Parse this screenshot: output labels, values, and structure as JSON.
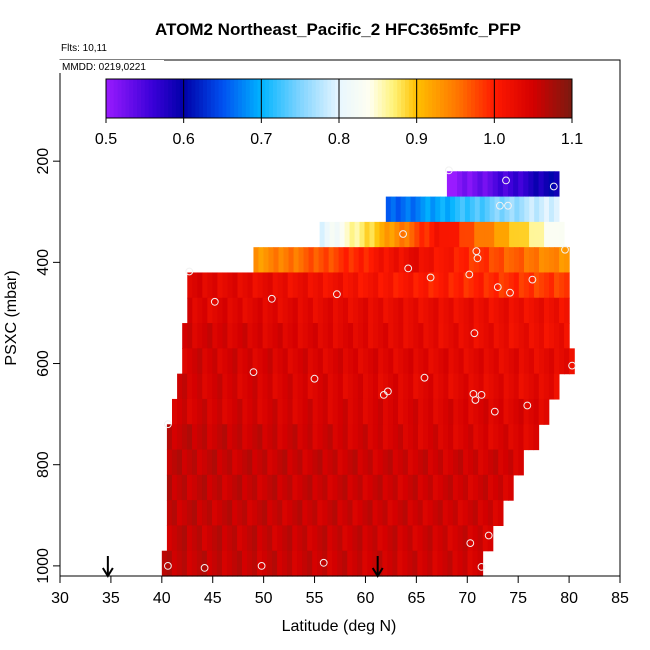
{
  "chart_data": {
    "type": "heatmap",
    "title": "ATOM2 Northeast_Pacific_2 HFC365mfc_PFP",
    "flights_label": "Flts: 10,11",
    "dates_label": "MMDD: 0219,0221",
    "xlabel": "Latitude (deg N)",
    "ylabel": "PSXC (mbar)",
    "xlim": [
      30,
      85
    ],
    "ylim": [
      1020,
      0
    ],
    "x_ticks": [
      30,
      35,
      40,
      45,
      50,
      55,
      60,
      65,
      70,
      75,
      80,
      85
    ],
    "y_ticks": [
      200,
      400,
      600,
      800,
      1000
    ],
    "colorbar": {
      "min": 0.5,
      "max": 1.1,
      "ticks": [
        "0.5",
        "0.6",
        "0.7",
        "0.8",
        "0.9",
        "1.0",
        "1.1"
      ],
      "stops": [
        {
          "v": 0.5,
          "c": "#9a1bff"
        },
        {
          "v": 0.56,
          "c": "#3a00d8"
        },
        {
          "v": 0.6,
          "c": "#0000a8"
        },
        {
          "v": 0.65,
          "c": "#0050f0"
        },
        {
          "v": 0.7,
          "c": "#00b4ff"
        },
        {
          "v": 0.75,
          "c": "#80d4ff"
        },
        {
          "v": 0.8,
          "c": "#e8f6ff"
        },
        {
          "v": 0.84,
          "c": "#fffff0"
        },
        {
          "v": 0.87,
          "c": "#fff37a"
        },
        {
          "v": 0.9,
          "c": "#ffc000"
        },
        {
          "v": 0.95,
          "c": "#ff7a00"
        },
        {
          "v": 1.0,
          "c": "#ff1a00"
        },
        {
          "v": 1.05,
          "c": "#d40000"
        },
        {
          "v": 1.1,
          "c": "#7a1a10"
        }
      ]
    },
    "arrows_lat": [
      34.7,
      61.2
    ],
    "rows": [
      {
        "p_top": 220,
        "p_bot": 270,
        "lat_min": 68.0,
        "lat_max": 79.0,
        "v_start": 0.5,
        "v_end": 0.6
      },
      {
        "p_top": 270,
        "p_bot": 320,
        "lat_min": 62.0,
        "lat_max": 79.0,
        "v_start": 0.65,
        "v_end": 0.8
      },
      {
        "p_top": 320,
        "p_bot": 370,
        "lat_min": 55.5,
        "lat_max": 79.5,
        "v_start": 0.8,
        "v_end": 0.82,
        "mid_value": 1.02
      },
      {
        "p_top": 370,
        "p_bot": 420,
        "lat_min": 49.0,
        "lat_max": 80.0,
        "v_start": 0.93,
        "v_end": 0.93,
        "mid_value": 1.03
      },
      {
        "p_top": 420,
        "p_bot": 470,
        "lat_min": 42.5,
        "lat_max": 80.0,
        "v_start": 1.04,
        "v_end": 0.98
      },
      {
        "p_top": 470,
        "p_bot": 520,
        "lat_min": 42.5,
        "lat_max": 80.0,
        "v_start": 1.04,
        "v_end": 1.02
      },
      {
        "p_top": 520,
        "p_bot": 570,
        "lat_min": 42.0,
        "lat_max": 80.0,
        "v_start": 1.05,
        "v_end": 1.02
      },
      {
        "p_top": 570,
        "p_bot": 620,
        "lat_min": 42.0,
        "lat_max": 80.5,
        "v_start": 1.05,
        "v_end": 1.03
      },
      {
        "p_top": 620,
        "p_bot": 670,
        "lat_min": 41.5,
        "lat_max": 79.0,
        "v_start": 1.05,
        "v_end": 1.03
      },
      {
        "p_top": 670,
        "p_bot": 720,
        "lat_min": 41.0,
        "lat_max": 78.0,
        "v_start": 1.05,
        "v_end": 1.04
      },
      {
        "p_top": 720,
        "p_bot": 770,
        "lat_min": 40.5,
        "lat_max": 77.0,
        "v_start": 1.06,
        "v_end": 1.04
      },
      {
        "p_top": 770,
        "p_bot": 820,
        "lat_min": 40.5,
        "lat_max": 75.5,
        "v_start": 1.06,
        "v_end": 1.05
      },
      {
        "p_top": 820,
        "p_bot": 870,
        "lat_min": 40.5,
        "lat_max": 74.5,
        "v_start": 1.06,
        "v_end": 1.05
      },
      {
        "p_top": 870,
        "p_bot": 920,
        "lat_min": 40.5,
        "lat_max": 73.5,
        "v_start": 1.06,
        "v_end": 1.05
      },
      {
        "p_top": 920,
        "p_bot": 970,
        "lat_min": 40.5,
        "lat_max": 72.5,
        "v_start": 1.06,
        "v_end": 1.05
      },
      {
        "p_top": 970,
        "p_bot": 1020,
        "lat_min": 40.0,
        "lat_max": 71.5,
        "v_start": 1.06,
        "v_end": 1.05
      }
    ],
    "samples": [
      {
        "lat": 68.2,
        "p": 218
      },
      {
        "lat": 73.8,
        "p": 238
      },
      {
        "lat": 78.5,
        "p": 250
      },
      {
        "lat": 73.2,
        "p": 288
      },
      {
        "lat": 74.0,
        "p": 288
      },
      {
        "lat": 63.7,
        "p": 344
      },
      {
        "lat": 70.9,
        "p": 378
      },
      {
        "lat": 79.6,
        "p": 375
      },
      {
        "lat": 71.0,
        "p": 392
      },
      {
        "lat": 42.7,
        "p": 418
      },
      {
        "lat": 64.2,
        "p": 412
      },
      {
        "lat": 66.4,
        "p": 430
      },
      {
        "lat": 70.2,
        "p": 424
      },
      {
        "lat": 76.4,
        "p": 434
      },
      {
        "lat": 45.2,
        "p": 478
      },
      {
        "lat": 50.8,
        "p": 472
      },
      {
        "lat": 57.2,
        "p": 463
      },
      {
        "lat": 73.0,
        "p": 449
      },
      {
        "lat": 74.2,
        "p": 460
      },
      {
        "lat": 70.7,
        "p": 540
      },
      {
        "lat": 49.0,
        "p": 617
      },
      {
        "lat": 55.0,
        "p": 630
      },
      {
        "lat": 65.8,
        "p": 628
      },
      {
        "lat": 80.3,
        "p": 604
      },
      {
        "lat": 62.2,
        "p": 655
      },
      {
        "lat": 61.8,
        "p": 662
      },
      {
        "lat": 70.6,
        "p": 660
      },
      {
        "lat": 71.4,
        "p": 662
      },
      {
        "lat": 70.8,
        "p": 672
      },
      {
        "lat": 72.7,
        "p": 695
      },
      {
        "lat": 75.9,
        "p": 683
      },
      {
        "lat": 40.6,
        "p": 720
      },
      {
        "lat": 72.1,
        "p": 940
      },
      {
        "lat": 70.3,
        "p": 955
      },
      {
        "lat": 40.6,
        "p": 1000
      },
      {
        "lat": 44.2,
        "p": 1004
      },
      {
        "lat": 49.8,
        "p": 1000
      },
      {
        "lat": 55.9,
        "p": 994
      },
      {
        "lat": 71.4,
        "p": 1002
      }
    ]
  }
}
